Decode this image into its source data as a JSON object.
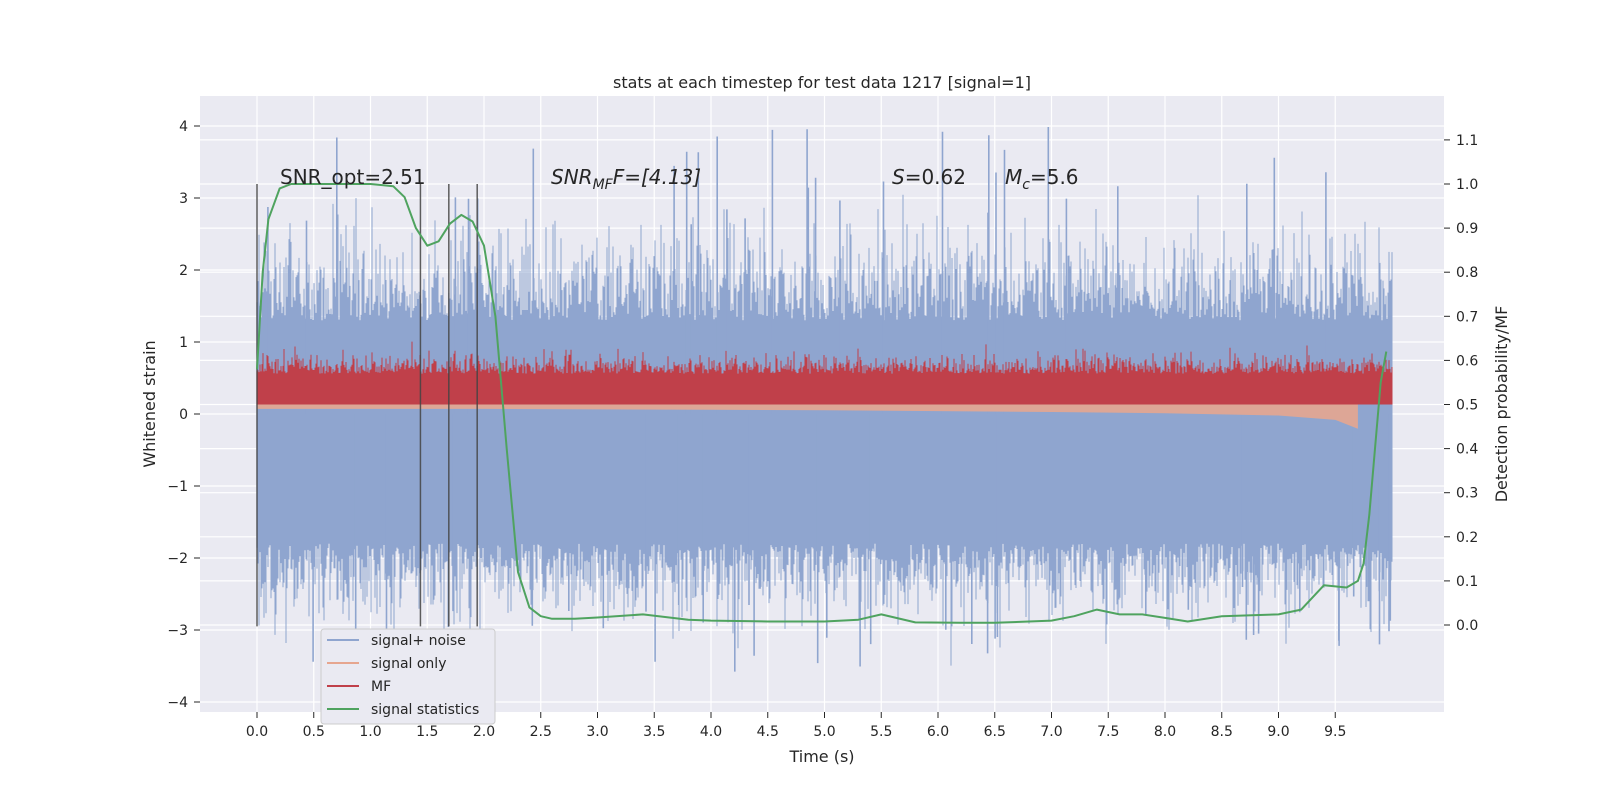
{
  "chart_data": {
    "type": "line",
    "title": "stats at each timestep for test data 1217 [signal=1]",
    "xlabel": "Time (s)",
    "ylabel_left": "Whitened strain",
    "ylabel_right": "Detection probability/MF",
    "xlim": [
      -0.5,
      10.5
    ],
    "ylim_left": [
      -4.2,
      4.4
    ],
    "ylim_right": [
      -0.2,
      1.2
    ],
    "x_ticks": [
      "0.0",
      "0.5",
      "1.0",
      "1.5",
      "2.0",
      "2.5",
      "3.0",
      "3.5",
      "4.0",
      "4.5",
      "5.0",
      "5.5",
      "6.0",
      "6.5",
      "7.0",
      "7.5",
      "8.0",
      "8.5",
      "9.0",
      "9.5"
    ],
    "y_ticks_left": [
      "4",
      "3",
      "2",
      "1",
      "0",
      "−1",
      "−2",
      "−3",
      "−4"
    ],
    "y_ticks_right": [
      "1.1",
      "1.0",
      "0.9",
      "0.8",
      "0.7",
      "0.6",
      "0.5",
      "0.4",
      "0.3",
      "0.2",
      "0.1",
      "0.0"
    ],
    "grid": true,
    "legend_position": "bottom-left",
    "annotations": {
      "snr_opt": "SNR_opt=2.51",
      "snr_mf_main": "SNR",
      "snr_mf_sub": "MF",
      "snr_mf_tail": "F=[4.13]",
      "s_symbol": "S",
      "s_value": "=0.62",
      "mc_main": "M",
      "mc_sub": "c",
      "mc_value": "=5.6"
    },
    "vertical_markers_x": [
      0.0,
      1.44,
      1.69,
      1.94
    ],
    "series": [
      {
        "name": "signal+ noise",
        "color": "#8fa5cf",
        "axis": "left",
        "description_envelope": {
          "x_start": 0.0,
          "x_end": 10.0,
          "typical_low": -1.8,
          "typical_high": 1.3,
          "peak_low": -3.8,
          "peak_high": 4.05
        }
      },
      {
        "name": "signal only",
        "color": "#e6a68f",
        "axis": "right",
        "x": [
          0.0,
          2.0,
          4.0,
          5.0,
          6.0,
          7.0,
          8.0,
          9.0,
          9.5,
          9.7
        ],
        "lower": [
          0.49,
          0.49,
          0.488,
          0.487,
          0.485,
          0.483,
          0.48,
          0.475,
          0.465,
          0.445
        ]
      },
      {
        "name": "MF",
        "color": "#c0404a",
        "axis": "right",
        "x_start": 0.0,
        "x_end": 10.0,
        "band_low": 0.5,
        "band_typical_high": 0.58,
        "band_peak_high": 0.66
      },
      {
        "name": "signal statistics",
        "color": "#4fa35f",
        "axis": "right",
        "x": [
          0.0,
          0.05,
          0.1,
          0.2,
          0.3,
          0.5,
          0.8,
          1.0,
          1.2,
          1.3,
          1.4,
          1.5,
          1.6,
          1.7,
          1.8,
          1.9,
          2.0,
          2.1,
          2.2,
          2.3,
          2.4,
          2.5,
          2.6,
          2.8,
          3.0,
          3.4,
          3.8,
          4.0,
          4.5,
          5.0,
          5.3,
          5.5,
          5.8,
          6.2,
          6.5,
          7.0,
          7.2,
          7.4,
          7.6,
          7.8,
          8.0,
          8.2,
          8.5,
          9.0,
          9.2,
          9.4,
          9.6,
          9.7,
          9.75,
          9.8,
          9.85,
          9.9,
          9.95
        ],
        "y": [
          0.58,
          0.8,
          0.92,
          0.99,
          1.0,
          1.0,
          1.0,
          1.0,
          0.995,
          0.97,
          0.9,
          0.86,
          0.87,
          0.91,
          0.93,
          0.915,
          0.86,
          0.7,
          0.4,
          0.12,
          0.04,
          0.02,
          0.014,
          0.014,
          0.017,
          0.024,
          0.012,
          0.01,
          0.008,
          0.008,
          0.012,
          0.024,
          0.006,
          0.005,
          0.005,
          0.01,
          0.02,
          0.035,
          0.024,
          0.024,
          0.016,
          0.008,
          0.02,
          0.024,
          0.035,
          0.09,
          0.085,
          0.1,
          0.14,
          0.25,
          0.4,
          0.55,
          0.62
        ]
      }
    ]
  }
}
